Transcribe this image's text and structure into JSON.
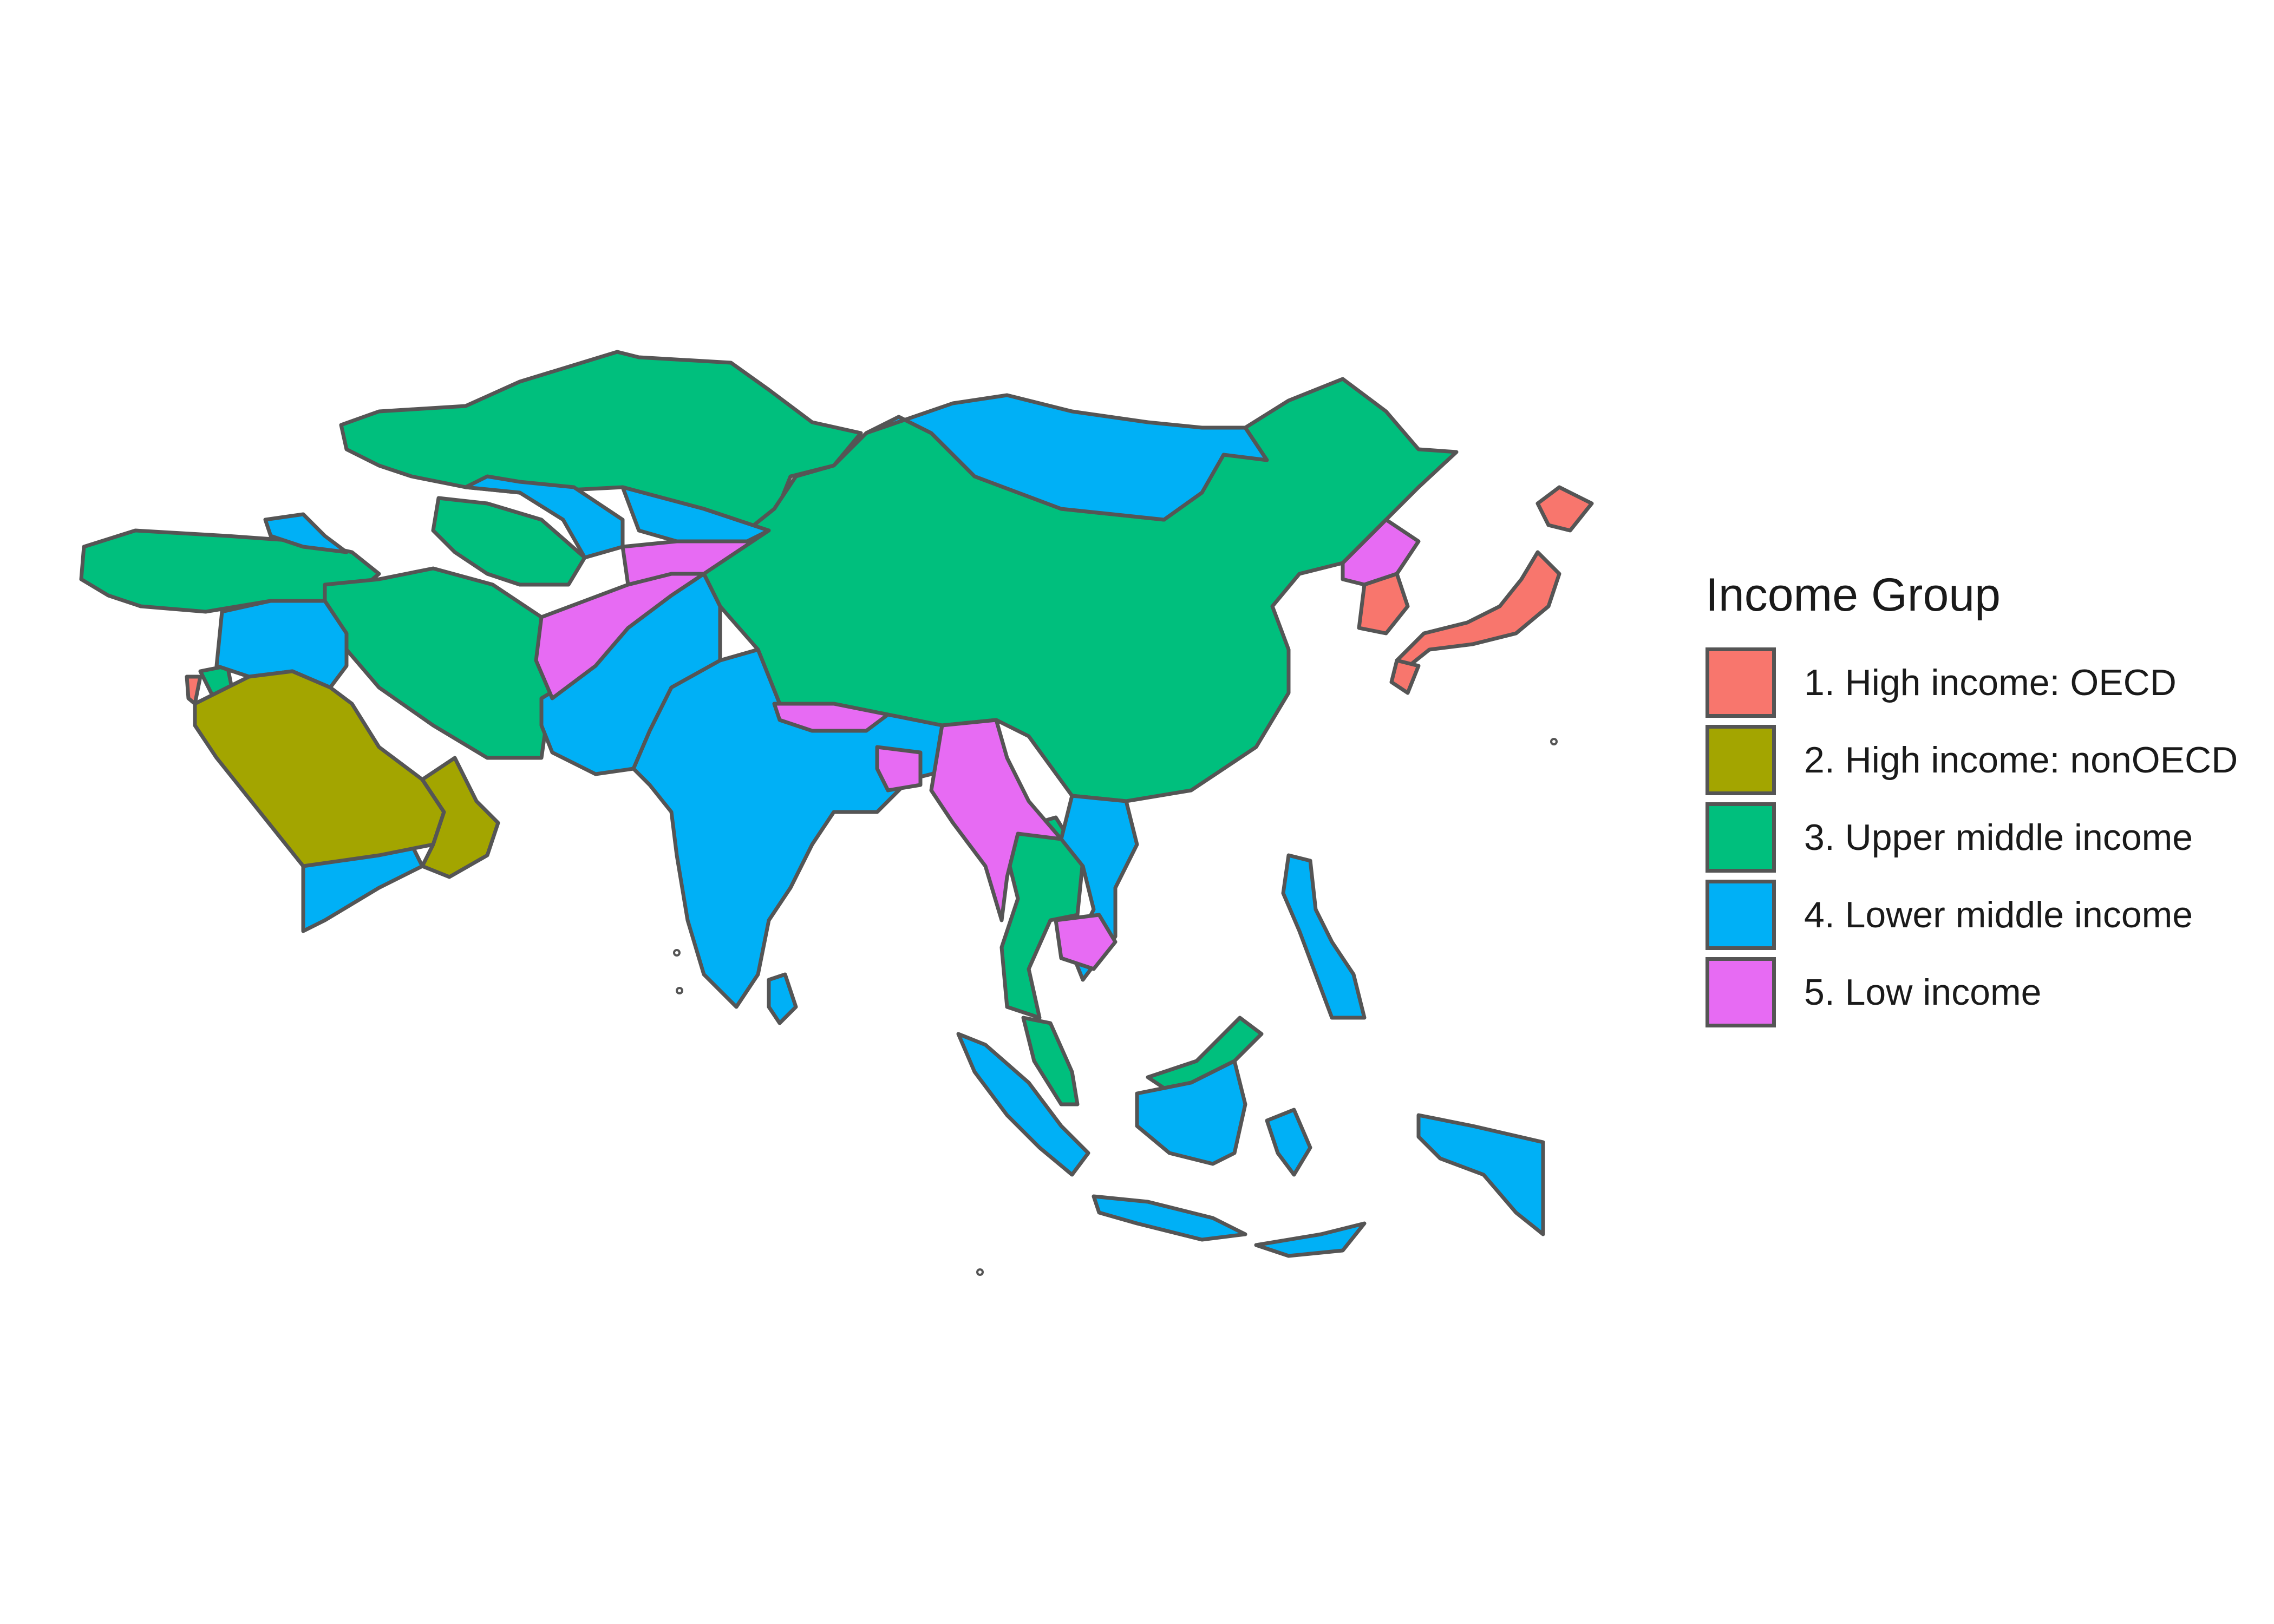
{
  "legend": {
    "title": "Income Group",
    "items": [
      {
        "label": "1. High income: OECD",
        "color": "#F8766D"
      },
      {
        "label": "2. High income: nonOECD",
        "color": "#A3A500"
      },
      {
        "label": "3. Upper middle income",
        "color": "#00BF7D"
      },
      {
        "label": "4. Lower middle income",
        "color": "#00B0F6"
      },
      {
        "label": "5. Low income",
        "color": "#E76BF3"
      }
    ]
  },
  "colors": {
    "border": "#555555",
    "background": "#ffffff"
  }
}
